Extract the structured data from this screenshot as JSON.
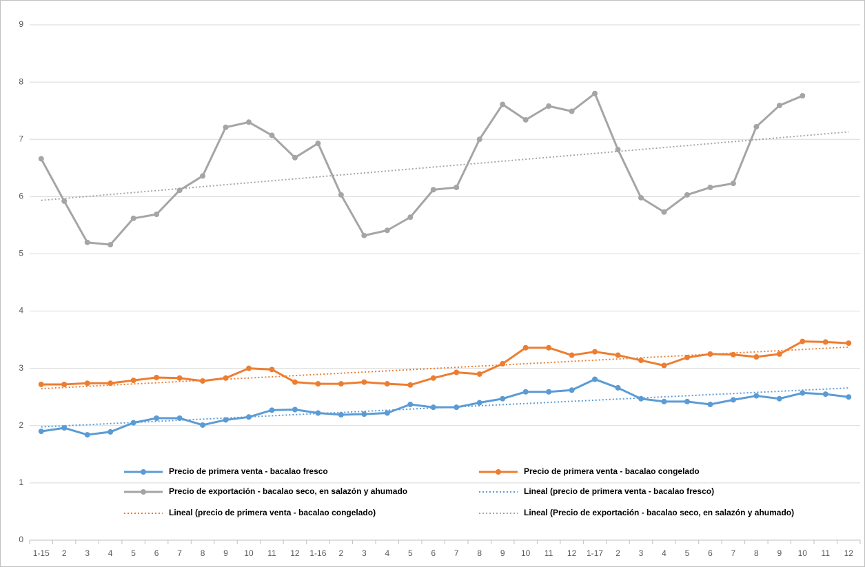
{
  "chart_data": {
    "type": "line",
    "categories": [
      "1-15",
      "2",
      "3",
      "4",
      "5",
      "6",
      "7",
      "8",
      "9",
      "10",
      "11",
      "12",
      "1-16",
      "2",
      "3",
      "4",
      "5",
      "6",
      "7",
      "8",
      "9",
      "10",
      "11",
      "12",
      "1-17",
      "2",
      "3",
      "4",
      "5",
      "6",
      "7",
      "8",
      "9",
      "10",
      "11",
      "12"
    ],
    "series": [
      {
        "name": "Precio de primera venta - bacalao fresco",
        "color": "#5b9bd5",
        "values": [
          1.9,
          1.96,
          1.84,
          1.89,
          2.05,
          2.13,
          2.13,
          2.01,
          2.1,
          2.15,
          2.27,
          2.28,
          2.22,
          2.19,
          2.2,
          2.22,
          2.37,
          2.32,
          2.32,
          2.4,
          2.47,
          2.59,
          2.59,
          2.62,
          2.81,
          2.66,
          2.47,
          2.42,
          2.42,
          2.37,
          2.45,
          2.52,
          2.47,
          2.57,
          2.55,
          2.5
        ]
      },
      {
        "name": "Precio de primera venta - bacalao congelado",
        "color": "#ed7d31",
        "values": [
          2.72,
          2.72,
          2.74,
          2.74,
          2.79,
          2.84,
          2.83,
          2.78,
          2.83,
          3.0,
          2.98,
          2.76,
          2.73,
          2.73,
          2.76,
          2.73,
          2.71,
          2.83,
          2.93,
          2.9,
          3.08,
          3.36,
          3.36,
          3.23,
          3.29,
          3.23,
          3.14,
          3.05,
          3.19,
          3.25,
          3.24,
          3.2,
          3.25,
          3.47,
          3.46,
          3.44
        ]
      },
      {
        "name": "Precio de exportación - bacalao seco, en salazón y ahumado",
        "color": "#a5a5a5",
        "values": [
          6.66,
          5.92,
          5.2,
          5.16,
          5.62,
          5.69,
          6.11,
          6.36,
          7.21,
          7.3,
          7.07,
          6.68,
          6.93,
          6.03,
          5.32,
          5.41,
          5.64,
          6.12,
          6.16,
          7.0,
          7.61,
          7.34,
          7.58,
          7.49,
          7.8,
          6.82,
          5.98,
          5.73,
          6.03,
          6.16,
          6.23,
          7.22,
          7.59,
          7.76,
          null,
          null
        ]
      }
    ],
    "trendlines": [
      {
        "name": "Lineal (precio de primera venta - bacalao fresco)",
        "color": "#5b9bd5",
        "series": 0,
        "type": "linear"
      },
      {
        "name": "Lineal (precio de primera venta - bacalao congelado)",
        "color": "#ed7d31",
        "series": 1,
        "type": "linear"
      },
      {
        "name": "Lineal (Precio de exportación - bacalao seco, en salazón y ahumado)",
        "color": "#a5a5a5",
        "series": 2,
        "type": "linear"
      }
    ],
    "ylim": [
      0,
      9
    ],
    "yticks": [
      0,
      1,
      2,
      3,
      4,
      5,
      6,
      7,
      8,
      9
    ],
    "grid": true
  }
}
